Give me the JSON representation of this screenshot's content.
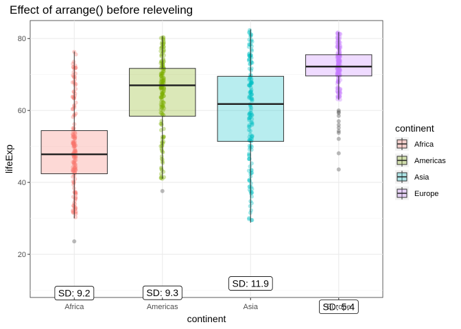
{
  "chart_data": {
    "type": "boxplot",
    "title": "Effect of arrange() before releveling",
    "xlabel": "continent",
    "ylabel": "lifeExp",
    "ylim": [
      8,
      85
    ],
    "yticks": [
      20,
      40,
      60,
      80
    ],
    "grid": true,
    "legend": {
      "title": "continent",
      "position": "right"
    },
    "categories": [
      "Africa",
      "Americas",
      "Asia",
      "Europe"
    ],
    "colors": [
      "#F8766D",
      "#7CAE00",
      "#00BFC4",
      "#C77CFF"
    ],
    "boxes": [
      {
        "name": "Africa",
        "min": 30.0,
        "q1": 42.4,
        "median": 47.8,
        "q3": 54.4,
        "max": 76.4,
        "outliers": [
          23.6
        ]
      },
      {
        "name": "Americas",
        "min": 41.0,
        "q1": 58.4,
        "median": 67.0,
        "q3": 71.7,
        "max": 80.7,
        "outliers": [
          37.6
        ]
      },
      {
        "name": "Asia",
        "min": 28.8,
        "q1": 51.4,
        "median": 61.8,
        "q3": 69.5,
        "max": 82.6,
        "outliers": []
      },
      {
        "name": "Europe",
        "min": 63.0,
        "q1": 69.6,
        "median": 72.2,
        "q3": 75.5,
        "max": 81.8,
        "outliers": [
          43.6,
          48.1,
          52.1,
          53.8,
          54.3,
          55.2,
          56.0,
          57.0,
          58.5,
          59.3,
          59.6,
          60.0
        ]
      }
    ],
    "sd_labels": [
      {
        "name": "Africa",
        "text": "SD:  9.2",
        "y": 9.2
      },
      {
        "name": "Americas",
        "text": "SD:  9.3",
        "y": 9.3
      },
      {
        "name": "Asia",
        "text": "SD:  11.9",
        "y": 11.9
      },
      {
        "name": "Europe",
        "text": "SD:  5.4",
        "y": 5.4
      }
    ]
  }
}
